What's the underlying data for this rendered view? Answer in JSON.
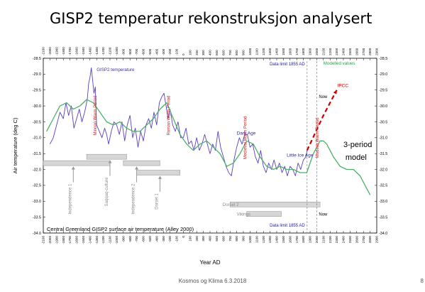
{
  "slide": {
    "title": "GISP2 temperatur rekonstruksjon analysert",
    "footer": "Kosmos og Klima 6.3.2018",
    "page_number": "8"
  },
  "chart_data": {
    "type": "line",
    "caption": "Central Greenland GISP2 surface air temperature (Alley 2000)",
    "xlabel": "Year AD",
    "ylabel": "Air temperature (deg C)",
    "xlim": [
      -2100,
      2900
    ],
    "ylim": [
      -34.0,
      -28.5
    ],
    "x_ticks": [
      -2100,
      -2000,
      -1900,
      -1800,
      -1700,
      -1600,
      -1500,
      -1400,
      -1300,
      -1200,
      -1100,
      -1000,
      -900,
      -800,
      -700,
      -600,
      -500,
      -400,
      -300,
      -200,
      -100,
      0,
      100,
      200,
      300,
      400,
      500,
      600,
      700,
      800,
      900,
      1000,
      1100,
      1200,
      1300,
      1400,
      1500,
      1600,
      1700,
      1800,
      1900,
      2000,
      2100,
      2200,
      2300,
      2400,
      2500,
      2600,
      2700,
      2800,
      2900
    ],
    "y_ticks": [
      -28.5,
      -29.0,
      -29.5,
      -30.0,
      -30.5,
      -31.0,
      -31.5,
      -32.0,
      -32.5,
      -33.0,
      -33.5,
      -34.0
    ],
    "series": [
      {
        "name": "GISP2 temperature",
        "color": "#5b3fbf",
        "x": [
          -2000,
          -1950,
          -1900,
          -1850,
          -1800,
          -1760,
          -1720,
          -1680,
          -1640,
          -1600,
          -1560,
          -1520,
          -1480,
          -1440,
          -1420,
          -1400,
          -1380,
          -1360,
          -1340,
          -1320,
          -1300,
          -1260,
          -1220,
          -1180,
          -1150,
          -1120,
          -1080,
          -1040,
          -1000,
          -960,
          -920,
          -880,
          -840,
          -800,
          -760,
          -720,
          -680,
          -640,
          -600,
          -560,
          -520,
          -480,
          -440,
          -400,
          -360,
          -320,
          -290,
          -260,
          -230,
          -200,
          -160,
          -120,
          -80,
          -40,
          0,
          40,
          80,
          120,
          160,
          200,
          240,
          280,
          320,
          360,
          400,
          440,
          480,
          520,
          560,
          600,
          640,
          680,
          720,
          760,
          800,
          840,
          880,
          920,
          960,
          1000,
          1040,
          1080,
          1120,
          1160,
          1200,
          1240,
          1280,
          1320,
          1360,
          1400,
          1440,
          1480,
          1520,
          1560,
          1600,
          1640,
          1680,
          1720,
          1760,
          1800,
          1840,
          1855
        ],
        "y": [
          -31.2,
          -31.0,
          -30.6,
          -30.2,
          -30.4,
          -29.9,
          -30.3,
          -30.0,
          -30.7,
          -30.4,
          -30.1,
          -30.5,
          -30.2,
          -29.8,
          -29.3,
          -29.1,
          -28.8,
          -29.2,
          -29.6,
          -29.4,
          -30.6,
          -30.8,
          -31.0,
          -30.7,
          -30.9,
          -31.2,
          -30.8,
          -30.5,
          -30.6,
          -30.9,
          -30.5,
          -31.1,
          -30.6,
          -30.3,
          -31.0,
          -30.7,
          -31.3,
          -30.8,
          -31.1,
          -30.6,
          -30.4,
          -30.7,
          -30.2,
          -30.6,
          -29.9,
          -29.7,
          -29.6,
          -30.0,
          -30.4,
          -30.1,
          -30.6,
          -30.8,
          -30.5,
          -31.0,
          -31.0,
          -30.7,
          -31.2,
          -31.1,
          -31.4,
          -31.0,
          -31.4,
          -31.2,
          -30.9,
          -31.2,
          -31.5,
          -31.2,
          -31.4,
          -30.8,
          -31.3,
          -31.6,
          -31.9,
          -32.1,
          -32.2,
          -31.7,
          -31.3,
          -31.0,
          -31.2,
          -30.9,
          -30.9,
          -31.3,
          -31.2,
          -31.6,
          -31.8,
          -31.4,
          -31.9,
          -32.1,
          -31.8,
          -32.0,
          -31.7,
          -32.0,
          -31.8,
          -32.1,
          -31.9,
          -32.2,
          -31.9,
          -32.0,
          -32.2,
          -31.8,
          -32.0,
          -31.7,
          -31.6,
          -31.4
        ]
      },
      {
        "name": "Modelled values",
        "color": "#4caf6a",
        "x": [
          -2050,
          -1950,
          -1850,
          -1750,
          -1650,
          -1550,
          -1450,
          -1350,
          -1250,
          -1150,
          -1050,
          -950,
          -850,
          -750,
          -650,
          -550,
          -450,
          -350,
          -250,
          -150,
          -50,
          50,
          150,
          250,
          350,
          450,
          550,
          650,
          750,
          850,
          950,
          1050,
          1150,
          1250,
          1350,
          1450,
          1550,
          1650,
          1750,
          1850,
          1950,
          2050,
          2100,
          2150,
          2250,
          2350,
          2450,
          2550,
          2650,
          2750,
          2800
        ],
        "y": [
          -30.8,
          -30.4,
          -30.0,
          -29.9,
          -30.1,
          -30.0,
          -29.8,
          -29.9,
          -30.2,
          -30.5,
          -30.6,
          -30.5,
          -30.7,
          -30.8,
          -30.8,
          -30.6,
          -30.4,
          -30.1,
          -29.9,
          -30.4,
          -30.9,
          -31.2,
          -31.4,
          -31.2,
          -31.1,
          -31.3,
          -31.5,
          -31.9,
          -31.8,
          -31.5,
          -31.1,
          -31.2,
          -31.6,
          -31.9,
          -32.0,
          -31.9,
          -32.0,
          -32.0,
          -32.1,
          -32.1,
          -31.5,
          -31.1,
          -31.1,
          -31.2,
          -31.6,
          -31.9,
          -32.0,
          -32.0,
          -32.2,
          -32.6,
          -32.8
        ]
      },
      {
        "name": "IPCC",
        "color": "#cc0000",
        "x": [
          1855,
          2100,
          2300
        ],
        "y": [
          -31.4,
          -30.3,
          -29.5
        ]
      }
    ],
    "vertical_markers": [
      {
        "x": 1855,
        "label_top": "Data limit 1855 AD",
        "label_bottom": "Data limit 1855 AD"
      },
      {
        "x": 2000,
        "label_top": "Now",
        "label_bottom": "Now"
      }
    ],
    "annotations": [
      {
        "text": "GISP2 temperature",
        "x": -1300,
        "y": -28.9
      },
      {
        "text": "Modelled values",
        "x": 2100,
        "y": -28.7
      },
      {
        "text": "IPCC",
        "x": 2310,
        "y": -29.4
      },
      {
        "text": "Dark Age",
        "x": 800,
        "y": -30.9
      },
      {
        "text": "Little Ice Age",
        "x": 1550,
        "y": -31.6
      },
      {
        "text": "3-period",
        "x": 2400,
        "y": -31.3
      },
      {
        "text": "model",
        "x": 2430,
        "y": -31.7
      }
    ],
    "warm_periods": [
      {
        "label": "Minoan Warm Period",
        "x": -1300,
        "y": -30.3
      },
      {
        "label": "Roman Warm Period",
        "x": -200,
        "y": -30.3
      },
      {
        "label": "Medieval Warm Period",
        "x": 950,
        "y": -31.0
      },
      {
        "label": "Modern Warm Period",
        "x": 2030,
        "y": -31.0
      }
    ],
    "cultures": [
      {
        "label": "Independence 1",
        "x0": -2100,
        "x1": -1100,
        "y": -31.8,
        "arrow_x": -1650,
        "label_x": -1650
      },
      {
        "label": "Saqqaq-culture",
        "x0": -1450,
        "x1": -850,
        "y": -31.6,
        "arrow_x": -1100,
        "label_x": -1100
      },
      {
        "label": "Independence 2",
        "x0": -900,
        "x1": -350,
        "y": -31.8,
        "arrow_x": -700,
        "label_x": -700
      },
      {
        "label": "Dorset 1",
        "x0": -700,
        "x1": -50,
        "y": -32.1,
        "arrow_x": -350,
        "label_x": -350
      },
      {
        "label": "Dorset 2",
        "x0": 700,
        "x1": 2050,
        "y": -33.1,
        "label_x": 590
      },
      {
        "label": "Vikings",
        "x0": 950,
        "x1": 1470,
        "y": -33.4,
        "label_x": 800
      }
    ]
  }
}
